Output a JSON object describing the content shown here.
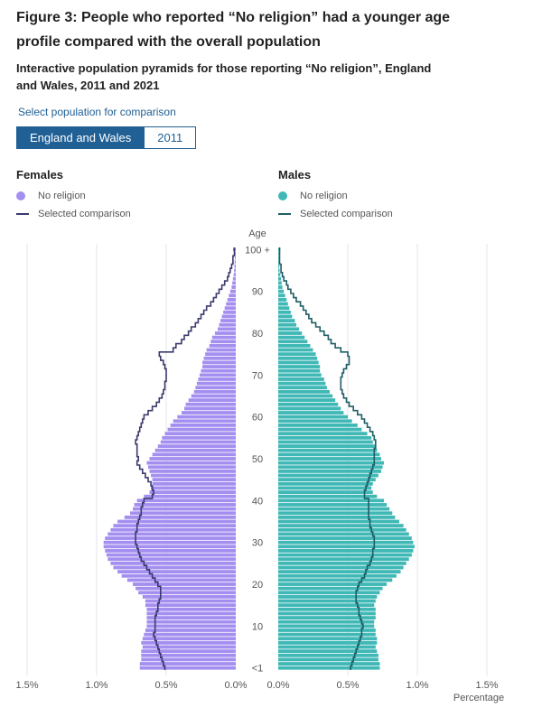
{
  "title": "Figure 3: People who reported “No religion” had a younger age profile compared with the overall population",
  "subtitle": "Interactive population pyramids for those reporting “No religion”, England and Wales, 2011 and 2021",
  "selector": {
    "label": "Select population for comparison",
    "options": [
      "England and Wales",
      "2011"
    ],
    "selected": "England and Wales"
  },
  "legend": {
    "females_title": "Females",
    "males_title": "Males",
    "no_religion": "No religion",
    "selected_comparison": "Selected comparison"
  },
  "colors": {
    "female_bar": "#a48ff0",
    "female_line": "#3b3a6e",
    "male_bar": "#3fb8b6",
    "male_line": "#1f5d66",
    "accent": "#206095"
  },
  "chart_data": {
    "type": "bar",
    "orientation": "horizontal-pyramid",
    "age_axis_title": "Age",
    "value_axis_title": "Percentage",
    "age_tick_labels": [
      {
        "age": 0,
        "label": "<1"
      },
      {
        "age": 10,
        "label": "10"
      },
      {
        "age": 20,
        "label": "20"
      },
      {
        "age": 30,
        "label": "30"
      },
      {
        "age": 40,
        "label": "40"
      },
      {
        "age": 50,
        "label": "50"
      },
      {
        "age": 60,
        "label": "60"
      },
      {
        "age": 70,
        "label": "70"
      },
      {
        "age": 80,
        "label": "80"
      },
      {
        "age": 90,
        "label": "90"
      },
      {
        "age": 100,
        "label": "100 +"
      }
    ],
    "female_ticks": [
      "1.5%",
      "1.0%",
      "0.5%",
      "0.0%"
    ],
    "male_ticks": [
      "0.0%",
      "0.5%",
      "1.0%",
      "1.5%"
    ],
    "xlim": [
      0,
      1.5
    ],
    "unit": "%",
    "ages": [
      0,
      1,
      2,
      3,
      4,
      5,
      6,
      7,
      8,
      9,
      10,
      11,
      12,
      13,
      14,
      15,
      16,
      17,
      18,
      19,
      20,
      21,
      22,
      23,
      24,
      25,
      26,
      27,
      28,
      29,
      30,
      31,
      32,
      33,
      34,
      35,
      36,
      37,
      38,
      39,
      40,
      41,
      42,
      43,
      44,
      45,
      46,
      47,
      48,
      49,
      50,
      51,
      52,
      53,
      54,
      55,
      56,
      57,
      58,
      59,
      60,
      61,
      62,
      63,
      64,
      65,
      66,
      67,
      68,
      69,
      70,
      71,
      72,
      73,
      74,
      75,
      76,
      77,
      78,
      79,
      80,
      81,
      82,
      83,
      84,
      85,
      86,
      87,
      88,
      89,
      90,
      91,
      92,
      93,
      94,
      95,
      96,
      97,
      98,
      99,
      100
    ],
    "series": [
      {
        "name": "Females No religion",
        "values": [
          0.69,
          0.69,
          0.68,
          0.68,
          0.68,
          0.67,
          0.68,
          0.67,
          0.66,
          0.65,
          0.64,
          0.64,
          0.64,
          0.64,
          0.64,
          0.65,
          0.65,
          0.67,
          0.7,
          0.72,
          0.74,
          0.78,
          0.82,
          0.85,
          0.88,
          0.9,
          0.92,
          0.93,
          0.94,
          0.95,
          0.95,
          0.94,
          0.92,
          0.9,
          0.88,
          0.85,
          0.8,
          0.76,
          0.74,
          0.73,
          0.71,
          0.66,
          0.62,
          0.61,
          0.6,
          0.6,
          0.61,
          0.62,
          0.63,
          0.64,
          0.62,
          0.6,
          0.58,
          0.56,
          0.54,
          0.53,
          0.51,
          0.49,
          0.47,
          0.45,
          0.42,
          0.39,
          0.37,
          0.36,
          0.34,
          0.32,
          0.3,
          0.29,
          0.28,
          0.27,
          0.26,
          0.25,
          0.24,
          0.24,
          0.23,
          0.22,
          0.21,
          0.19,
          0.18,
          0.17,
          0.15,
          0.13,
          0.12,
          0.11,
          0.1,
          0.09,
          0.08,
          0.07,
          0.06,
          0.05,
          0.04,
          0.03,
          0.025,
          0.02,
          0.015,
          0.012,
          0.01,
          0.008,
          0.006,
          0.005,
          0.02
        ]
      },
      {
        "name": "Females Selected comparison",
        "values": [
          0.51,
          0.52,
          0.53,
          0.54,
          0.55,
          0.56,
          0.57,
          0.58,
          0.59,
          0.58,
          0.58,
          0.58,
          0.58,
          0.57,
          0.56,
          0.56,
          0.55,
          0.54,
          0.54,
          0.54,
          0.56,
          0.58,
          0.6,
          0.62,
          0.64,
          0.66,
          0.68,
          0.69,
          0.7,
          0.71,
          0.72,
          0.72,
          0.72,
          0.71,
          0.71,
          0.7,
          0.69,
          0.68,
          0.68,
          0.67,
          0.66,
          0.6,
          0.59,
          0.6,
          0.61,
          0.63,
          0.65,
          0.67,
          0.69,
          0.71,
          0.7,
          0.71,
          0.71,
          0.71,
          0.72,
          0.71,
          0.7,
          0.69,
          0.68,
          0.67,
          0.66,
          0.63,
          0.6,
          0.57,
          0.55,
          0.53,
          0.52,
          0.51,
          0.51,
          0.5,
          0.5,
          0.5,
          0.51,
          0.52,
          0.54,
          0.55,
          0.45,
          0.43,
          0.39,
          0.37,
          0.34,
          0.32,
          0.29,
          0.27,
          0.25,
          0.23,
          0.21,
          0.18,
          0.16,
          0.14,
          0.12,
          0.1,
          0.08,
          0.06,
          0.05,
          0.04,
          0.03,
          0.02,
          0.02,
          0.01,
          0.01
        ]
      },
      {
        "name": "Males No religion",
        "values": [
          0.73,
          0.73,
          0.72,
          0.72,
          0.71,
          0.7,
          0.71,
          0.71,
          0.7,
          0.7,
          0.69,
          0.69,
          0.7,
          0.7,
          0.7,
          0.69,
          0.7,
          0.71,
          0.73,
          0.75,
          0.78,
          0.82,
          0.85,
          0.88,
          0.9,
          0.92,
          0.94,
          0.96,
          0.97,
          0.98,
          0.97,
          0.96,
          0.94,
          0.92,
          0.9,
          0.87,
          0.84,
          0.82,
          0.8,
          0.78,
          0.76,
          0.71,
          0.68,
          0.67,
          0.68,
          0.7,
          0.72,
          0.74,
          0.75,
          0.76,
          0.74,
          0.73,
          0.71,
          0.7,
          0.68,
          0.67,
          0.64,
          0.6,
          0.57,
          0.53,
          0.5,
          0.47,
          0.45,
          0.43,
          0.41,
          0.39,
          0.37,
          0.35,
          0.34,
          0.33,
          0.31,
          0.3,
          0.3,
          0.29,
          0.28,
          0.27,
          0.25,
          0.23,
          0.21,
          0.19,
          0.17,
          0.15,
          0.13,
          0.12,
          0.1,
          0.09,
          0.08,
          0.07,
          0.06,
          0.05,
          0.04,
          0.03,
          0.025,
          0.02,
          0.015,
          0.01,
          0.008,
          0.006,
          0.005,
          0.004,
          0.015
        ]
      },
      {
        "name": "Males Selected comparison",
        "values": [
          0.52,
          0.53,
          0.54,
          0.55,
          0.56,
          0.57,
          0.58,
          0.59,
          0.6,
          0.6,
          0.61,
          0.6,
          0.59,
          0.58,
          0.58,
          0.57,
          0.56,
          0.56,
          0.56,
          0.57,
          0.58,
          0.6,
          0.62,
          0.63,
          0.64,
          0.66,
          0.67,
          0.68,
          0.68,
          0.69,
          0.69,
          0.69,
          0.68,
          0.67,
          0.66,
          0.66,
          0.65,
          0.65,
          0.65,
          0.65,
          0.65,
          0.62,
          0.62,
          0.63,
          0.64,
          0.65,
          0.66,
          0.67,
          0.68,
          0.69,
          0.69,
          0.69,
          0.69,
          0.7,
          0.7,
          0.69,
          0.68,
          0.66,
          0.64,
          0.62,
          0.6,
          0.57,
          0.54,
          0.51,
          0.49,
          0.47,
          0.46,
          0.45,
          0.45,
          0.45,
          0.46,
          0.47,
          0.49,
          0.51,
          0.51,
          0.5,
          0.45,
          0.41,
          0.38,
          0.36,
          0.33,
          0.3,
          0.27,
          0.24,
          0.22,
          0.2,
          0.18,
          0.16,
          0.13,
          0.11,
          0.09,
          0.07,
          0.06,
          0.04,
          0.03,
          0.02,
          0.02,
          0.01,
          0.01,
          0.01,
          0.01
        ]
      }
    ],
    "grid": true,
    "legend_position": "top"
  }
}
